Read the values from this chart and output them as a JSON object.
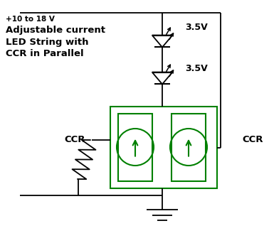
{
  "title_line1": "+10 to 18 V",
  "title_line2": "Adjustable current\nLED String with\nCCR in Parallel",
  "voltage1": "3.5V",
  "voltage2": "3.5V",
  "ccr_left": "CCR",
  "ccr_right": "CCR",
  "green": "#008000",
  "black": "#000000",
  "bg": "#ffffff",
  "figsize": [
    3.78,
    3.49
  ],
  "dpi": 100
}
